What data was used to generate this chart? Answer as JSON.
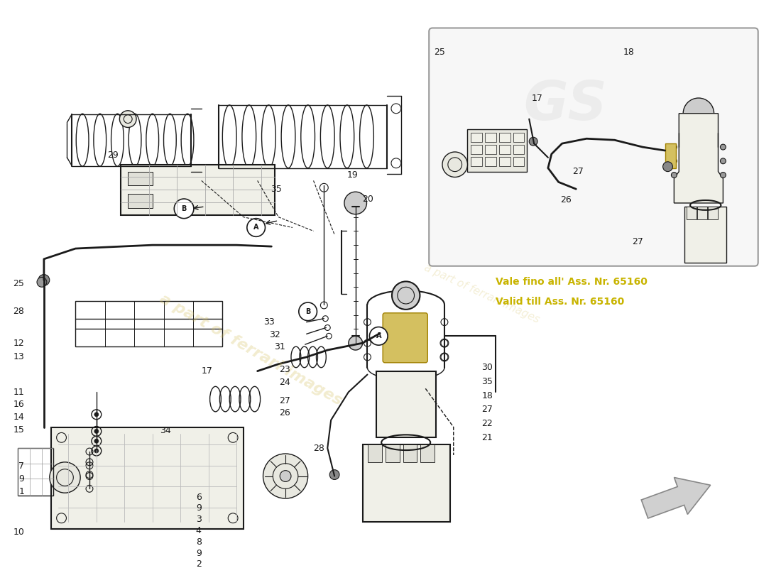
{
  "background_color": "#ffffff",
  "line_color": "#1a1a1a",
  "note_color": "#c8b400",
  "watermark_color": "#d4c060",
  "note_text_it": "Vale fino all' Ass. Nr. 65160",
  "note_text_en": "Valid till Ass. Nr. 65160",
  "inset_border": "#999999",
  "inset_bg": "#f7f7f7",
  "arrow_fill": "#d0d0d0",
  "arrow_edge": "#888888",
  "part_labels_main": [
    [
      145,
      222,
      "29",
      "left"
    ],
    [
      27,
      405,
      "25",
      "right"
    ],
    [
      27,
      445,
      "28",
      "right"
    ],
    [
      27,
      490,
      "12",
      "right"
    ],
    [
      27,
      510,
      "13",
      "right"
    ],
    [
      27,
      560,
      "11",
      "right"
    ],
    [
      27,
      578,
      "16",
      "right"
    ],
    [
      27,
      596,
      "14",
      "right"
    ],
    [
      27,
      614,
      "15",
      "right"
    ],
    [
      27,
      666,
      "7",
      "right"
    ],
    [
      27,
      684,
      "9",
      "right"
    ],
    [
      27,
      702,
      "1",
      "right"
    ],
    [
      27,
      760,
      "10",
      "right"
    ],
    [
      280,
      530,
      "17",
      "left"
    ],
    [
      220,
      615,
      "34",
      "left"
    ],
    [
      272,
      710,
      "6",
      "left"
    ],
    [
      272,
      726,
      "9",
      "left"
    ],
    [
      272,
      742,
      "3",
      "left"
    ],
    [
      272,
      758,
      "4",
      "left"
    ],
    [
      272,
      774,
      "8",
      "left"
    ],
    [
      272,
      790,
      "9",
      "left"
    ],
    [
      272,
      806,
      "2",
      "left"
    ],
    [
      395,
      270,
      "35",
      "right"
    ],
    [
      488,
      250,
      "19",
      "left"
    ],
    [
      510,
      284,
      "20",
      "left"
    ],
    [
      385,
      460,
      "33",
      "right"
    ],
    [
      393,
      478,
      "32",
      "right"
    ],
    [
      400,
      495,
      "31",
      "right"
    ],
    [
      407,
      528,
      "23",
      "right"
    ],
    [
      407,
      546,
      "24",
      "right"
    ],
    [
      407,
      572,
      "27",
      "right"
    ],
    [
      407,
      590,
      "26",
      "right"
    ],
    [
      440,
      640,
      "28",
      "left"
    ],
    [
      680,
      525,
      "30",
      "left"
    ],
    [
      680,
      545,
      "35",
      "left"
    ],
    [
      680,
      565,
      "18",
      "left"
    ],
    [
      680,
      585,
      "27",
      "left"
    ],
    [
      680,
      605,
      "22",
      "left"
    ],
    [
      680,
      625,
      "21",
      "left"
    ]
  ],
  "inset_labels": [
    [
      620,
      75,
      "25",
      "center"
    ],
    [
      760,
      140,
      "17",
      "center"
    ],
    [
      890,
      75,
      "18",
      "center"
    ],
    [
      810,
      245,
      "27",
      "left"
    ],
    [
      793,
      285,
      "26",
      "left"
    ],
    [
      895,
      345,
      "27",
      "left"
    ]
  ]
}
